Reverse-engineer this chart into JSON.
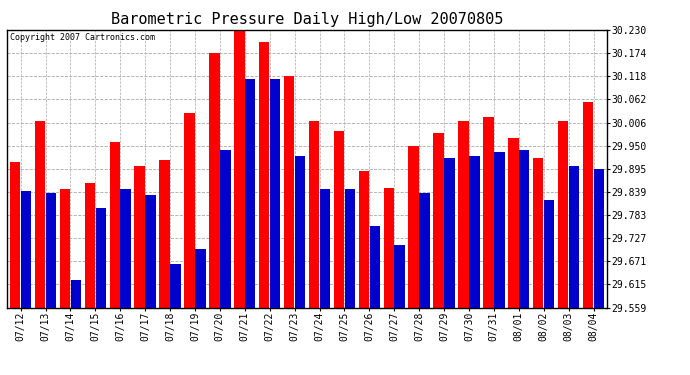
{
  "title": "Barometric Pressure Daily High/Low 20070805",
  "copyright": "Copyright 2007 Cartronics.com",
  "dates": [
    "07/12",
    "07/13",
    "07/14",
    "07/15",
    "07/16",
    "07/17",
    "07/18",
    "07/19",
    "07/20",
    "07/21",
    "07/22",
    "07/23",
    "07/24",
    "07/25",
    "07/26",
    "07/27",
    "07/28",
    "07/29",
    "07/30",
    "07/31",
    "08/01",
    "08/02",
    "08/03",
    "08/04"
  ],
  "highs": [
    29.91,
    30.01,
    29.845,
    29.86,
    29.96,
    29.9,
    29.916,
    30.03,
    30.174,
    30.23,
    30.2,
    30.118,
    30.01,
    29.985,
    29.89,
    29.848,
    29.95,
    29.98,
    30.01,
    30.02,
    29.97,
    29.92,
    30.01,
    30.055
  ],
  "lows": [
    29.84,
    29.835,
    29.625,
    29.8,
    29.845,
    29.83,
    29.665,
    29.7,
    29.94,
    30.112,
    30.112,
    29.925,
    29.845,
    29.845,
    29.755,
    29.71,
    29.835,
    29.92,
    29.925,
    29.935,
    29.94,
    29.82,
    29.9,
    29.895
  ],
  "high_color": "#ff0000",
  "low_color": "#0000cc",
  "bg_color": "#ffffff",
  "grid_color": "#aaaaaa",
  "yticks": [
    29.559,
    29.615,
    29.671,
    29.727,
    29.783,
    29.839,
    29.895,
    29.95,
    30.006,
    30.062,
    30.118,
    30.174,
    30.23
  ],
  "ymin": 29.559,
  "ymax": 30.23,
  "title_fontsize": 11,
  "tick_fontsize": 7,
  "copyright_fontsize": 6
}
